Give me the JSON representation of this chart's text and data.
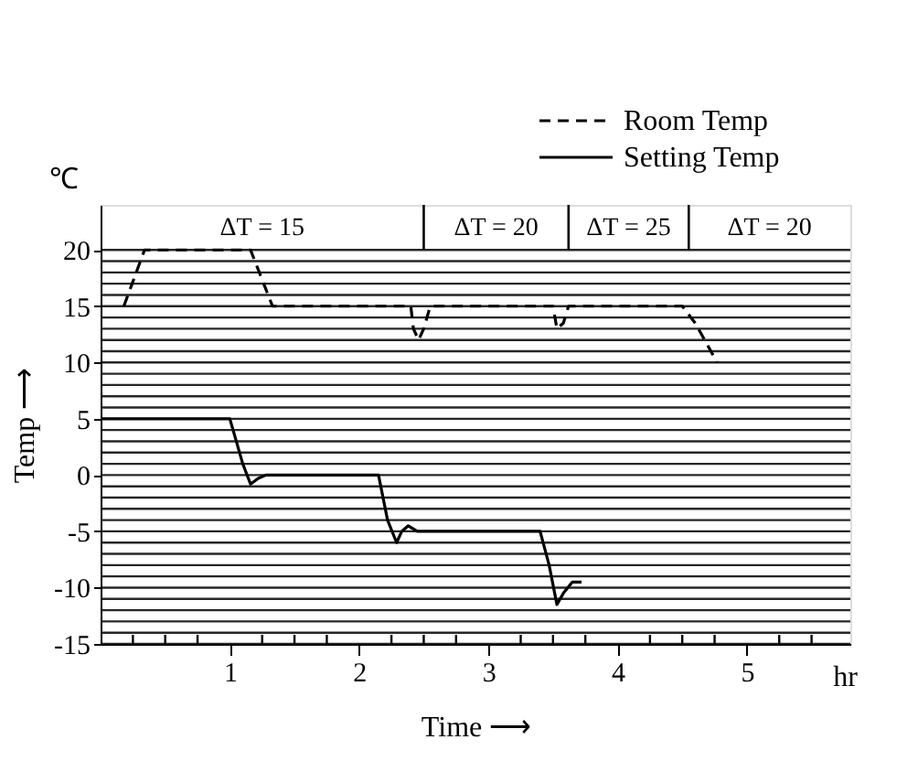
{
  "chart_data": {
    "type": "line",
    "xlabel": "Time ⟶",
    "ylabel": "Temp ⟶",
    "x": [
      0,
      1.0,
      1.1,
      1.16,
      1.22,
      1.28,
      1.35,
      2.15,
      2.22,
      2.29,
      2.33,
      2.38,
      2.45,
      3.4,
      3.47,
      3.53,
      3.58,
      3.65,
      3.72
    ],
    "series": [
      {
        "name": "Room Temp",
        "color": "#000000",
        "line_style": "dashed",
        "x": [
          0.18,
          0.34,
          1.16,
          1.33,
          2.4,
          2.42,
          2.46,
          2.5,
          2.55,
          3.5,
          3.53,
          3.58,
          3.62,
          4.5,
          4.6,
          4.77
        ],
        "values": [
          15,
          20,
          20,
          15,
          15,
          13,
          12,
          13,
          15,
          15,
          13,
          13.5,
          15,
          15,
          13.5,
          10
        ]
      },
      {
        "name": "Setting Temp",
        "color": "#000000",
        "line_style": "solid",
        "values": [
          5,
          5,
          1,
          -0.8,
          -0.3,
          0,
          0,
          0,
          -4,
          -6,
          -5,
          -4.5,
          -5,
          -5,
          -8,
          -11.5,
          -10.5,
          -9.5,
          -9.5
        ]
      }
    ],
    "xlim": [
      0,
      5.8
    ],
    "xticks": [
      {
        "value": 0.25,
        "label": null
      },
      {
        "value": 0.5,
        "label": null
      },
      {
        "value": 0.75,
        "label": null
      },
      1,
      {
        "value": 1.25,
        "label": null
      },
      {
        "value": 1.5,
        "label": null
      },
      {
        "value": 1.75,
        "label": null
      },
      2,
      {
        "value": 2.25,
        "label": null
      },
      {
        "value": 2.5,
        "label": null
      },
      {
        "value": 2.75,
        "label": null
      },
      3,
      {
        "value": 3.25,
        "label": null
      },
      {
        "value": 3.5,
        "label": null
      },
      {
        "value": 3.75,
        "label": null
      },
      4,
      {
        "value": 4.25,
        "label": null
      },
      {
        "value": 4.5,
        "label": null
      },
      {
        "value": 4.75,
        "label": null
      },
      5,
      {
        "value": 5.25,
        "label": null
      },
      {
        "value": 5.5,
        "label": null
      }
    ],
    "ylim": [
      -15,
      24
    ],
    "yticks": [
      -15,
      {
        "value": -14,
        "label": null
      },
      {
        "value": -13,
        "label": null
      },
      {
        "value": -12,
        "label": null
      },
      {
        "value": -11,
        "label": null
      },
      -10,
      {
        "value": -9,
        "label": null
      },
      {
        "value": -8,
        "label": null
      },
      {
        "value": -7,
        "label": null
      },
      {
        "value": -6,
        "label": null
      },
      -5,
      {
        "value": -4,
        "label": null
      },
      {
        "value": -3,
        "label": null
      },
      {
        "value": -2,
        "label": null
      },
      {
        "value": -1,
        "label": null
      },
      0,
      {
        "value": 1,
        "label": null
      },
      {
        "value": 2,
        "label": null
      },
      {
        "value": 3,
        "label": null
      },
      {
        "value": 4,
        "label": null
      },
      5,
      {
        "value": 6,
        "label": null
      },
      {
        "value": 7,
        "label": null
      },
      {
        "value": 8,
        "label": null
      },
      {
        "value": 9,
        "label": null
      },
      10,
      {
        "value": 11,
        "label": null
      },
      {
        "value": 12,
        "label": null
      },
      {
        "value": 13,
        "label": null
      },
      {
        "value": 14,
        "label": null
      },
      15,
      {
        "value": 16,
        "label": null
      },
      {
        "value": 17,
        "label": null
      },
      {
        "value": 18,
        "label": null
      },
      {
        "value": 19,
        "label": null
      },
      20
    ],
    "grid": "y",
    "legend": "top right",
    "ref_lines": [
      {
        "axis": "x",
        "value": 2.5
      },
      {
        "axis": "x",
        "value": 3.62
      },
      {
        "axis": "x",
        "value": 4.55
      }
    ],
    "annotations": [
      "ΔT = 15",
      "ΔT = 20",
      "ΔT = 25",
      "ΔT = 20",
      "℃",
      "hr"
    ]
  }
}
